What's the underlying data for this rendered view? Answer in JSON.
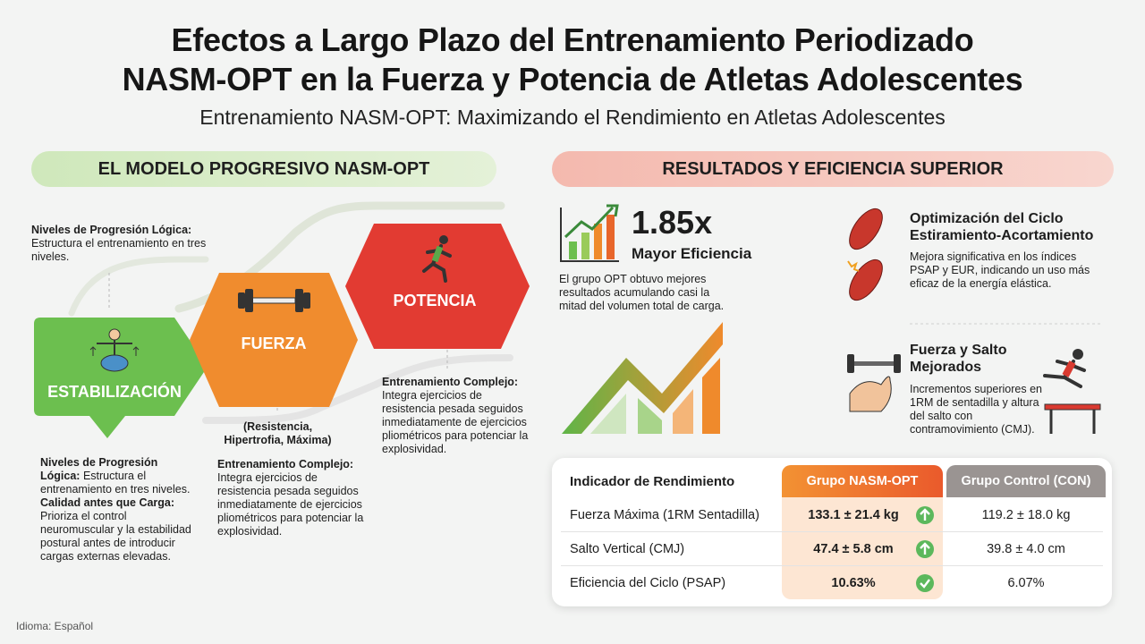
{
  "header": {
    "title_lines": [
      "Efectos a Largo Plazo del Entrenamiento Periodizado",
      "NASM-OPT en la Fuerza y Potencia de Atletas Adolescentes"
    ],
    "subtitle": "Entrenamiento NASM-OPT: Maximizando el Rendimiento en Atletas Adolescentes"
  },
  "left": {
    "heading": "EL MODELO PROGRESIVO NASM-OPT",
    "intro": {
      "label": "Niveles de Progresión Lógica:",
      "text": "Estructura el entrenamiento en tres niveles."
    },
    "stages": [
      {
        "name": "ESTABILIZACIÓN"
      },
      {
        "name": "FUERZA",
        "detail": "(Resistencia, Hipertrofia, Máxima)"
      },
      {
        "name": "POTENCIA"
      }
    ],
    "notes": [
      {
        "items": [
          {
            "label": "Niveles de Progresión Lógica:",
            "text": "Estructura el entrenamiento en tres niveles."
          },
          {
            "label": "Calidad antes que Carga:",
            "text": "Prioriza el control neuromuscular y la estabilidad postural antes de introducir cargas externas elevadas."
          }
        ]
      },
      {
        "items": [
          {
            "label": "Entrenamiento Complejo:",
            "text": "Integra ejercicios de resistencia pesada seguidos inmediatamente de ejercicios pliométricos para potenciar la explosividad."
          }
        ]
      },
      {
        "items": [
          {
            "label": "Entrenamiento Complejo:",
            "text": "Integra ejercicios de resistencia pesada seguidos inmediatamente de ejercicios pliométricos para potenciar la explosividad."
          }
        ]
      }
    ]
  },
  "right": {
    "heading": "RESULTADOS Y EFICIENCIA SUPERIOR",
    "highlight": {
      "value": "1.85x",
      "label": "Mayor Eficiencia",
      "text": "El grupo OPT obtuvo mejores resultados acumulando casi la mitad del volumen total de carga."
    },
    "features": [
      {
        "title": "Optimización del Ciclo Estiramiento-Acortamiento",
        "text": "Mejora significativa en los índices PSAP y EUR, indicando un uso más eficaz de la energía elástica."
      },
      {
        "title": "Fuerza y Salto Mejorados",
        "text": "Incrementos superiores en 1RM de sentadilla y altura del salto con contramovimiento (CMJ)."
      }
    ]
  },
  "table": {
    "headers": [
      "Indicador de Rendimiento",
      "Grupo NASM-OPT",
      "Grupo Control (CON)"
    ],
    "rows": [
      [
        "Fuerza Máxima (1RM Sentadilla)",
        "133.1 ± 21.4 kg",
        "119.2 ± 18.0 kg"
      ],
      [
        "Salto Vertical (CMJ)",
        "47.4 ± 5.8 cm",
        "39.8 ± 4.0 cm"
      ],
      [
        "Eficiencia del Ciclo (PSAP)",
        "10.63%",
        "6.07%"
      ]
    ]
  },
  "footer": "Idioma: Español"
}
